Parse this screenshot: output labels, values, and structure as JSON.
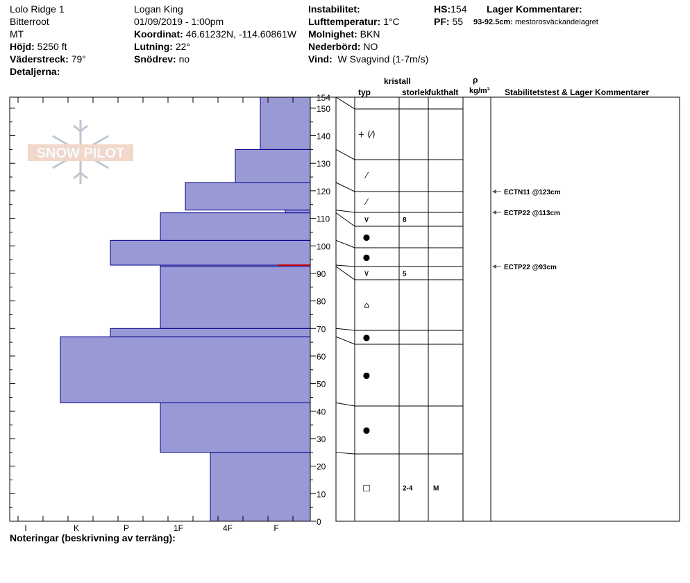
{
  "header": {
    "location": "Lolo Ridge 1",
    "range": "Bitterroot",
    "state": "MT",
    "elevation_label": "Höjd:",
    "elevation_value": "5250 ft",
    "aspect_label": "Väderstreck:",
    "aspect_value": "79°",
    "details_label": "Detaljerna:",
    "observer": "Logan King",
    "datetime": "01/09/2019 - 1:00pm",
    "coord_label": "Koordinat:",
    "coord_value": "46.61232N, -114.60861W",
    "slope_label": "Lutning:",
    "slope_value": "22°",
    "drift_label": "Snödrev:",
    "drift_value": "no",
    "instability_label": "Instabilitet:",
    "airtemp_label": "Lufttemperatur:",
    "airtemp_value": "1°C",
    "cloud_label": "Molnighet:",
    "cloud_value": "BKN",
    "precip_label": "Nederbörd:",
    "precip_value": "NO",
    "wind_label": "Vind:",
    "wind_value": "W Svagvind (1-7m/s)",
    "hs_label": "HS:",
    "hs_value": "154",
    "pf_label": "PF:",
    "pf_value": "55",
    "layer_comments_label": "Lager Kommentarer:",
    "layer_comment_range": "93-92.5cm:",
    "layer_comment_text": "mestorosväckandelagret"
  },
  "notes_label": "Noteringar (beskrivning av terräng):",
  "logo_text": "SNOW PILOT",
  "colors": {
    "bar_fill": "#9999d6",
    "bar_stroke": "#00008b",
    "weak_layer": "#cc0000",
    "arrow": "#555555"
  },
  "chart_data": {
    "type": "bar",
    "orientation": "horizontal",
    "y_unit": "cm",
    "ylim": [
      0,
      154
    ],
    "y_ticks": [
      0,
      10,
      20,
      30,
      40,
      50,
      60,
      70,
      80,
      90,
      100,
      110,
      120,
      130,
      140,
      150
    ],
    "y_tick_labels": [
      "0",
      "10",
      "20",
      "30",
      "40",
      "50",
      "60",
      "70",
      "80",
      "90",
      "100",
      "110",
      "120",
      "130",
      "140",
      "150"
    ],
    "top_label": "154",
    "hardness_scale": [
      "I",
      "K",
      "P",
      "1F",
      "4F",
      "F"
    ],
    "hardness_scale_values": [
      6,
      5,
      4,
      3,
      2,
      1
    ],
    "layers": [
      {
        "bottom": 0,
        "top": 25,
        "hardness": 2
      },
      {
        "bottom": 25,
        "top": 43,
        "hardness": 3
      },
      {
        "bottom": 43,
        "top": 67,
        "hardness": 5
      },
      {
        "bottom": 67,
        "top": 70,
        "hardness": 4
      },
      {
        "bottom": 70,
        "top": 92.5,
        "hardness": 3
      },
      {
        "bottom": 92.5,
        "top": 93,
        "hardness": 3
      },
      {
        "bottom": 93,
        "top": 102,
        "hardness": 4
      },
      {
        "bottom": 102,
        "top": 112,
        "hardness": 3
      },
      {
        "bottom": 112,
        "top": 113,
        "hardness": 0.5
      },
      {
        "bottom": 113,
        "top": 123,
        "hardness": 2.5
      },
      {
        "bottom": 123,
        "top": 135,
        "hardness": 1.5
      },
      {
        "bottom": 135,
        "top": 154,
        "hardness": 1
      }
    ],
    "weak_layer": {
      "bottom": 92.5,
      "top": 93
    },
    "table_headers": {
      "crystal": "kristall",
      "type": "typ",
      "size": "storlek",
      "moisture": "fukthalt",
      "density_symbol": "ρ",
      "density_unit": "kg/m³",
      "stability": "Stabilitetstest & Lager Kommentarer"
    },
    "table_rows": [
      {
        "bottom": 0,
        "top": 25,
        "type_symbol": "□",
        "size": "2-4",
        "moisture": "M"
      },
      {
        "bottom": 25,
        "top": 43,
        "type_symbol": "●",
        "size": "",
        "moisture": ""
      },
      {
        "bottom": 43,
        "top": 67,
        "type_symbol": "●",
        "size": "",
        "moisture": ""
      },
      {
        "bottom": 67,
        "top": 70,
        "type_symbol": "●",
        "size": "",
        "moisture": ""
      },
      {
        "bottom": 70,
        "top": 92.5,
        "type_symbol": "⌂",
        "size": "",
        "moisture": ""
      },
      {
        "bottom": 92.5,
        "top": 93,
        "type_symbol": "∨",
        "size": "5",
        "moisture": ""
      },
      {
        "bottom": 93,
        "top": 102,
        "type_symbol": "●",
        "size": "",
        "moisture": ""
      },
      {
        "bottom": 102,
        "top": 112,
        "type_symbol": "●",
        "size": "",
        "moisture": ""
      },
      {
        "bottom": 112,
        "top": 113,
        "type_symbol": "∨",
        "size": "8",
        "moisture": ""
      },
      {
        "bottom": 113,
        "top": 123,
        "type_symbol": "⁄",
        "size": "",
        "moisture": ""
      },
      {
        "bottom": 123,
        "top": 135,
        "type_symbol": "⁄",
        "size": "",
        "moisture": ""
      },
      {
        "bottom": 135,
        "top": 154,
        "type_symbol": "+ (⁄)",
        "size": "",
        "moisture": ""
      }
    ],
    "stability_tests": [
      {
        "depth": 123,
        "label": "ECTN11 @123cm"
      },
      {
        "depth": 113,
        "label": "ECTP22 @113cm"
      },
      {
        "depth": 93,
        "label": "ECTP22 @93cm"
      }
    ]
  }
}
